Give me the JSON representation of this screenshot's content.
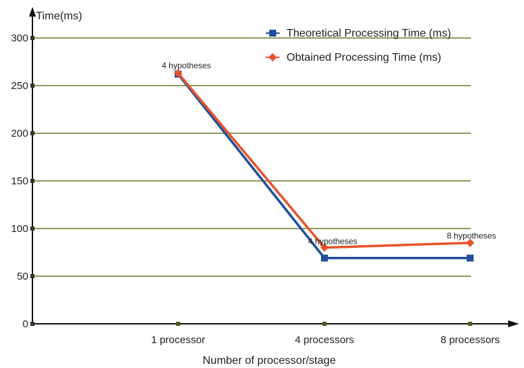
{
  "chart_data": {
    "type": "line",
    "title": "",
    "xlabel": "Number of processor/stage",
    "ylabel": "Time(ms)",
    "categories": [
      "1 processor",
      "4 processors",
      "8 processors"
    ],
    "ylim": [
      0,
      300
    ],
    "yticks": [
      0,
      50,
      100,
      150,
      200,
      250,
      300
    ],
    "grid": true,
    "legend": "top-right",
    "series": [
      {
        "name": "Theoretical Processing Time (ms)",
        "values": [
          262,
          69,
          69
        ],
        "color": "#1f4e9c",
        "marker": "square"
      },
      {
        "name": "Obtained Processing Time (ms)",
        "values": [
          263,
          80,
          85
        ],
        "color": "#e8532b",
        "marker": "diamond"
      }
    ],
    "annotations": [
      {
        "text": "4 hypotheses",
        "category": "1 processor",
        "value": 263
      },
      {
        "text": "4 hypotheses",
        "category": "4 processors",
        "value": 80
      },
      {
        "text": "8 hypotheses",
        "category": "8 processors",
        "value": 85
      }
    ],
    "colors": {
      "grid": "#6b7a2a",
      "axis": "#111111"
    }
  }
}
